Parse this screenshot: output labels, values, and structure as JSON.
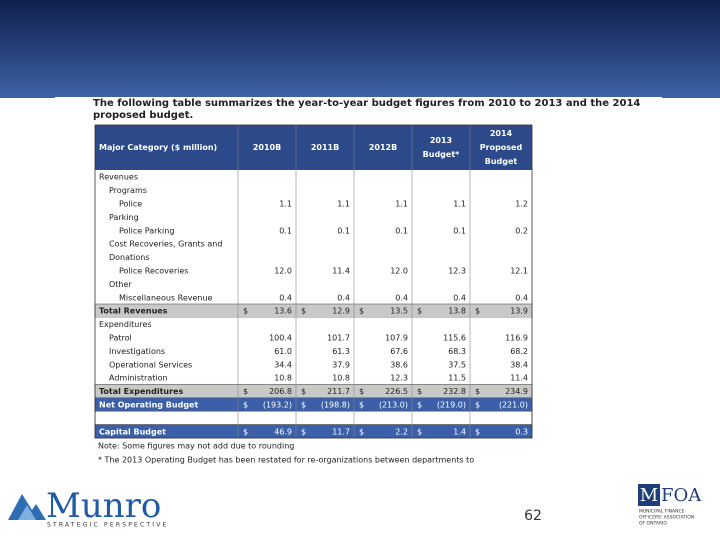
{
  "intro": "The following table summarizes the year-to-year budget figures from 2010 to 2013 and the 2014 proposed budget.",
  "table": {
    "header": [
      [
        "Major Category  ($ million)"
      ],
      [
        "2010B"
      ],
      [
        "2011B"
      ],
      [
        "2012B"
      ],
      [
        "2013",
        "Budget*"
      ],
      [
        "2014",
        "Proposed",
        "Budget"
      ]
    ],
    "rows": [
      {
        "label": "Revenues",
        "level": 0
      },
      {
        "label": "Programs",
        "level": 1
      },
      {
        "label": "Police",
        "level": 2,
        "values": [
          "1.1",
          "1.1",
          "1.1",
          "1.1",
          "1.2"
        ]
      },
      {
        "label": "Parking",
        "level": 1
      },
      {
        "label": "Police Parking",
        "level": 2,
        "values": [
          "0.1",
          "0.1",
          "0.1",
          "0.1",
          "0.2"
        ]
      },
      {
        "label": "Cost Recoveries, Grants and",
        "level": 1
      },
      {
        "label": "Donations",
        "level": 1
      },
      {
        "label": "Police Recoveries",
        "level": 2,
        "values": [
          "12.0",
          "11.4",
          "12.0",
          "12.3",
          "12.1"
        ]
      },
      {
        "label": "Other",
        "level": 1
      },
      {
        "label": "Miscellaneous Revenue",
        "level": 2,
        "values": [
          "0.4",
          "0.4",
          "0.4",
          "0.4",
          "0.4"
        ]
      },
      {
        "label": "Total Revenues",
        "level": 0,
        "style": "total",
        "currency": "$",
        "values": [
          "13.6",
          "12.9",
          "13.5",
          "13.8",
          "13.9"
        ]
      },
      {
        "label": "Expenditures",
        "level": 0
      },
      {
        "label": "Patrol",
        "level": 1,
        "values": [
          "100.4",
          "101.7",
          "107.9",
          "115.6",
          "116.9"
        ]
      },
      {
        "label": "Investigations",
        "level": 1,
        "values": [
          "61.0",
          "61.3",
          "67.6",
          "68.3",
          "68.2"
        ]
      },
      {
        "label": "Operational Services",
        "level": 1,
        "values": [
          "34.4",
          "37.9",
          "38.6",
          "37.5",
          "38.4"
        ]
      },
      {
        "label": "Administration",
        "level": 1,
        "values": [
          "10.8",
          "10.8",
          "12.3",
          "11.5",
          "11.4"
        ]
      },
      {
        "label": "Total Expenditures",
        "level": 0,
        "style": "total",
        "currency": "$",
        "values": [
          "206.8",
          "211.7",
          "226.5",
          "232.8",
          "234.9"
        ]
      },
      {
        "label": "Net Operating Budget",
        "level": 0,
        "style": "net",
        "currency": "$",
        "values": [
          "(193.2)",
          "(198.8)",
          "(213.0)",
          "(219.0)",
          "(221.0)"
        ]
      },
      {
        "level": 0,
        "style": "blank"
      },
      {
        "label": "Capital Budget",
        "level": 0,
        "style": "net",
        "currency": "$",
        "values": [
          "46.9",
          "11.7",
          "2.2",
          "1.4",
          "0.3"
        ]
      }
    ],
    "notes": [
      "Note: Some figures may not add due to rounding",
      "* The 2013 Operating Budget has been restated for re-organizations between departments to"
    ]
  },
  "footer": {
    "page_number": "62",
    "left_logo": {
      "name": "Munro",
      "tagline": "STRATEGIC PERSPECTIVE"
    },
    "right_logo": {
      "mark": "M",
      "name": "FOA",
      "lines": [
        "MUNICIPAL FINANCE",
        "OFFICERS' ASSOCIATION",
        "OF ONTARIO"
      ]
    }
  }
}
